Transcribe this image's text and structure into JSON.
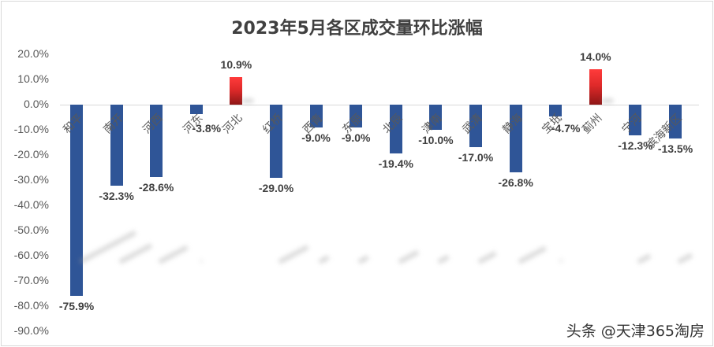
{
  "title": "2023年5月各区成交量环比涨幅",
  "watermark": "头条 @天津365淘房",
  "colors": {
    "negative": "#2f5597",
    "positive": "#e02a2a",
    "text": "#404040",
    "axis": "#595959"
  },
  "y_ticks": [
    "20.0%",
    "10.0%",
    "0.0%",
    "-10.0%",
    "-20.0%",
    "-30.0%",
    "-40.0%",
    "-50.0%",
    "-60.0%",
    "-70.0%",
    "-80.0%",
    "-90.0%"
  ],
  "chart_data": {
    "type": "bar",
    "title": "2023年5月各区成交量环比涨幅",
    "xlabel": "",
    "ylabel": "",
    "ylim": [
      -90,
      20
    ],
    "y_tick_step": 10,
    "grid": false,
    "legend": null,
    "categories": [
      "和平",
      "南开",
      "河西",
      "河东",
      "河北",
      "红桥",
      "西青",
      "东丽",
      "北辰",
      "津南",
      "武清",
      "静海",
      "宝坻",
      "蓟州",
      "宁河",
      "滨海新区"
    ],
    "values": [
      -75.9,
      -32.3,
      -28.6,
      -3.8,
      10.9,
      -29.0,
      -9.0,
      -9.0,
      -19.4,
      -10.0,
      -17.0,
      -26.8,
      -4.7,
      14.0,
      -12.3,
      -13.5
    ],
    "labels": [
      "-75.9%",
      "-32.3%",
      "-28.6%",
      "-3.8%",
      "10.9%",
      "-29.0%",
      "-9.0%",
      "-9.0%",
      "-19.4%",
      "-10.0%",
      "-17.0%",
      "-26.8%",
      "-4.7%",
      "14.0%",
      "-12.3%",
      "-13.5%"
    ],
    "unit": "%"
  }
}
